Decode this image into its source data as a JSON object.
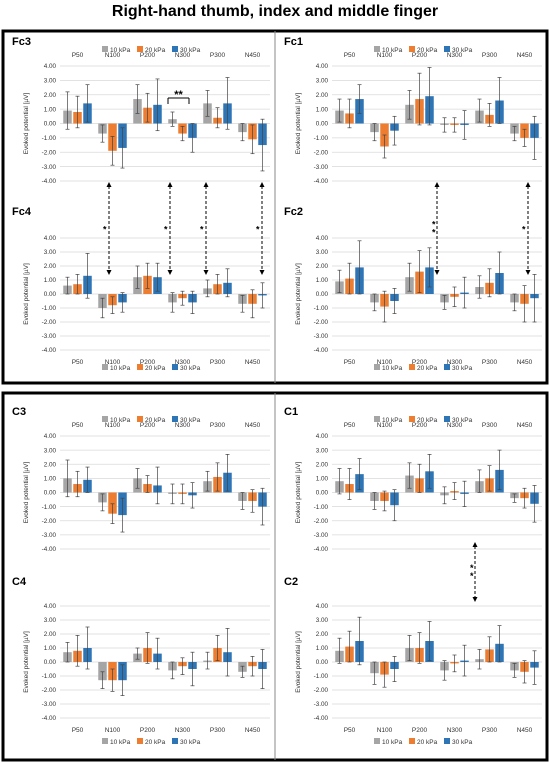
{
  "title": "Right-hand thumb, index and middle finger",
  "legend": [
    "10 kPa",
    "20 kPa",
    "30 kPa"
  ],
  "categories": [
    "P50",
    "N100",
    "P200",
    "N300",
    "P300",
    "N450"
  ],
  "yticks": [
    "4.00",
    "3.00",
    "2.00",
    "1.00",
    "0.00",
    "-1.00",
    "-2.00",
    "-3.00",
    "-4.00"
  ],
  "ylabel": "Evoked potential [µV]",
  "colors": {
    "s10": "#a5a5a5",
    "s20": "#ed7d31",
    "s30": "#2e75b6",
    "frame": "#000000",
    "grid": "#d9d9d9",
    "err": "#444444"
  },
  "sig_marks": {
    "double_star": "**",
    "single_star": "*"
  },
  "chart_data": [
    {
      "type": "bar",
      "label": "Fc3",
      "ylim": [
        -4,
        4
      ],
      "categories": [
        "P50",
        "N100",
        "P200",
        "N300",
        "P300",
        "N450"
      ],
      "series": [
        {
          "name": "10 kPa",
          "values": [
            0.9,
            -0.7,
            1.7,
            0.3,
            1.4,
            -0.6
          ],
          "errors": [
            1.3,
            0.6,
            1.0,
            0.5,
            0.9,
            0.6
          ]
        },
        {
          "name": "20 kPa",
          "values": [
            0.8,
            -1.9,
            1.1,
            -0.7,
            0.4,
            -1.1
          ],
          "errors": [
            1.1,
            1.0,
            1.0,
            0.5,
            0.7,
            1.0
          ]
        },
        {
          "name": "30 kPa",
          "values": [
            1.4,
            -1.7,
            1.3,
            -1.0,
            1.4,
            -1.5
          ],
          "errors": [
            1.3,
            1.4,
            1.8,
            1.0,
            1.8,
            1.8
          ]
        }
      ]
    },
    {
      "type": "bar",
      "label": "Fc1",
      "ylim": [
        -4,
        4
      ],
      "categories": [
        "P50",
        "N100",
        "P200",
        "N300",
        "P300",
        "N450"
      ],
      "series": [
        {
          "name": "10 kPa",
          "values": [
            0.9,
            -0.6,
            1.3,
            -0.1,
            0.9,
            -0.7
          ],
          "errors": [
            0.8,
            0.6,
            1.0,
            0.5,
            0.8,
            0.5
          ]
        },
        {
          "name": "20 kPa",
          "values": [
            0.7,
            -1.6,
            1.7,
            -0.1,
            0.6,
            -1.0
          ],
          "errors": [
            1.0,
            0.8,
            1.8,
            0.5,
            0.8,
            0.6
          ]
        },
        {
          "name": "30 kPa",
          "values": [
            1.7,
            -0.5,
            1.9,
            -0.1,
            1.6,
            -1.0
          ],
          "errors": [
            1.0,
            1.0,
            2.0,
            1.0,
            1.6,
            1.5
          ]
        }
      ]
    },
    {
      "type": "bar",
      "label": "Fc4",
      "ylim": [
        -4,
        4
      ],
      "categories": [
        "P50",
        "N100",
        "P200",
        "N300",
        "P300",
        "N450"
      ],
      "series": [
        {
          "name": "10 kPa",
          "values": [
            0.6,
            -1.0,
            1.2,
            -0.6,
            0.4,
            -0.7
          ],
          "errors": [
            0.6,
            0.7,
            0.8,
            0.7,
            0.6,
            0.6
          ]
        },
        {
          "name": "20 kPa",
          "values": [
            0.7,
            -0.8,
            1.3,
            -0.3,
            0.7,
            -0.7
          ],
          "errors": [
            0.7,
            0.6,
            0.9,
            0.5,
            0.7,
            1.0
          ]
        },
        {
          "name": "30 kPa",
          "values": [
            1.3,
            -0.6,
            1.2,
            -0.6,
            0.8,
            -0.1
          ],
          "errors": [
            1.6,
            0.7,
            1.0,
            0.8,
            1.0,
            0.9
          ]
        }
      ]
    },
    {
      "type": "bar",
      "label": "Fc2",
      "ylim": [
        -4,
        4
      ],
      "categories": [
        "P50",
        "N100",
        "P200",
        "N300",
        "P300",
        "N450"
      ],
      "series": [
        {
          "name": "10 kPa",
          "values": [
            0.9,
            -0.6,
            1.2,
            -0.6,
            0.5,
            -0.6
          ],
          "errors": [
            0.8,
            0.6,
            1.0,
            0.5,
            0.8,
            0.6
          ]
        },
        {
          "name": "20 kPa",
          "values": [
            1.1,
            -0.9,
            1.6,
            -0.2,
            0.8,
            -0.7
          ],
          "errors": [
            1.1,
            1.1,
            1.5,
            0.7,
            1.0,
            1.3
          ]
        },
        {
          "name": "30 kPa",
          "values": [
            1.9,
            -0.5,
            1.9,
            0.1,
            1.5,
            -0.3
          ],
          "errors": [
            1.9,
            0.9,
            1.4,
            1.1,
            1.5,
            1.7
          ]
        }
      ]
    },
    {
      "type": "bar",
      "label": "C3",
      "ylim": [
        -4,
        4
      ],
      "categories": [
        "P50",
        "N100",
        "P200",
        "N300",
        "P300",
        "N450"
      ],
      "series": [
        {
          "name": "10 kPa",
          "values": [
            1.0,
            -0.7,
            1.0,
            -0.1,
            0.8,
            -0.6
          ],
          "errors": [
            1.3,
            0.6,
            0.7,
            0.7,
            0.7,
            0.6
          ]
        },
        {
          "name": "20 kPa",
          "values": [
            0.6,
            -1.5,
            0.6,
            -0.1,
            1.1,
            -0.6
          ],
          "errors": [
            0.9,
            0.7,
            0.6,
            0.7,
            1.0,
            0.8
          ]
        },
        {
          "name": "30 kPa",
          "values": [
            0.9,
            -1.6,
            0.5,
            -0.2,
            1.4,
            -1.0
          ],
          "errors": [
            0.9,
            1.2,
            1.3,
            0.9,
            1.3,
            1.3
          ]
        }
      ]
    },
    {
      "type": "bar",
      "label": "C1",
      "ylim": [
        -4,
        4
      ],
      "categories": [
        "P50",
        "N100",
        "P200",
        "N300",
        "P300",
        "N450"
      ],
      "series": [
        {
          "name": "10 kPa",
          "values": [
            0.8,
            -0.6,
            1.2,
            -0.2,
            0.8,
            -0.4
          ],
          "errors": [
            0.9,
            0.6,
            0.9,
            0.6,
            0.8,
            0.3
          ]
        },
        {
          "name": "20 kPa",
          "values": [
            0.6,
            -0.6,
            1.0,
            0.1,
            1.0,
            -0.4
          ],
          "errors": [
            1.1,
            0.7,
            1.0,
            0.6,
            0.9,
            0.7
          ]
        },
        {
          "name": "30 kPa",
          "values": [
            1.3,
            -0.9,
            1.5,
            -0.1,
            1.6,
            -0.8
          ],
          "errors": [
            1.1,
            1.1,
            1.2,
            0.9,
            1.4,
            1.3
          ]
        }
      ]
    },
    {
      "type": "bar",
      "label": "C4",
      "ylim": [
        -4,
        4
      ],
      "categories": [
        "P50",
        "N100",
        "P200",
        "N300",
        "P300",
        "N450"
      ],
      "series": [
        {
          "name": "10 kPa",
          "values": [
            0.7,
            -1.3,
            0.6,
            -0.6,
            0.1,
            -0.7
          ],
          "errors": [
            0.7,
            0.6,
            0.4,
            0.6,
            0.6,
            0.4
          ]
        },
        {
          "name": "20 kPa",
          "values": [
            0.8,
            -1.3,
            1.0,
            -0.3,
            1.0,
            -0.3
          ],
          "errors": [
            1.1,
            0.8,
            1.1,
            0.6,
            0.9,
            0.7
          ]
        },
        {
          "name": "30 kPa",
          "values": [
            1.0,
            -1.3,
            0.6,
            -0.5,
            0.7,
            -0.5
          ],
          "errors": [
            1.5,
            1.1,
            1.1,
            1.2,
            1.7,
            1.4
          ]
        }
      ]
    },
    {
      "type": "bar",
      "label": "C2",
      "ylim": [
        -4,
        4
      ],
      "categories": [
        "P50",
        "N100",
        "P200",
        "N300",
        "P300",
        "N450"
      ],
      "series": [
        {
          "name": "10 kPa",
          "values": [
            0.8,
            -0.8,
            1.0,
            -0.6,
            0.2,
            -0.6
          ],
          "errors": [
            0.9,
            0.8,
            0.9,
            0.7,
            0.7,
            0.5
          ]
        },
        {
          "name": "20 kPa",
          "values": [
            1.1,
            -0.9,
            1.0,
            -0.1,
            0.9,
            -0.7
          ],
          "errors": [
            1.1,
            0.9,
            1.1,
            0.6,
            0.9,
            0.8
          ]
        },
        {
          "name": "30 kPa",
          "values": [
            1.5,
            -0.5,
            1.5,
            0.1,
            1.3,
            -0.4
          ],
          "errors": [
            1.7,
            0.9,
            1.4,
            1.1,
            1.3,
            1.2
          ]
        }
      ]
    }
  ]
}
